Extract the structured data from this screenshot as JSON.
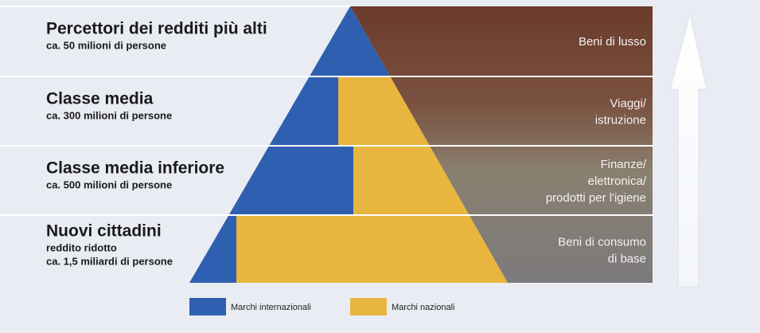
{
  "tiers": [
    {
      "title": "Percettori dei redditi più alti",
      "lines": [
        "ca. 50 milioni di persone"
      ],
      "products": [
        "Beni di lusso"
      ]
    },
    {
      "title": "Classe media",
      "lines": [
        "ca. 300 milioni di persone"
      ],
      "products": [
        "Viaggi/",
        "istruzione"
      ]
    },
    {
      "title": "Classe media inferiore",
      "lines": [
        "ca. 500 milioni di persone"
      ],
      "products": [
        "Finanze/",
        "elettronica/",
        "prodotti per l'igiene"
      ]
    },
    {
      "title": "Nuovi cittadini",
      "lines": [
        "reddito ridotto",
        "ca. 1,5 miliardi di persone"
      ],
      "products": [
        "Beni di consumo",
        "di base"
      ]
    }
  ],
  "legend": [
    {
      "label": "Marchi internazionali",
      "color": "#2f5fb0"
    },
    {
      "label": "Marchi nazionali",
      "color": "#e8b63e"
    }
  ]
}
